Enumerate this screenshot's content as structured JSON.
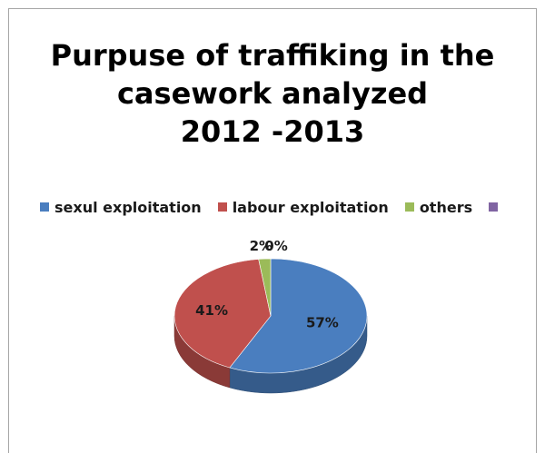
{
  "chart_data": {
    "type": "pie",
    "title_lines": [
      "Purpuse of traffiking in the",
      "casework analyzed",
      "2012 -2013"
    ],
    "categories": [
      "sexul exploitation",
      "labour exploitation",
      "others",
      ""
    ],
    "values": [
      57,
      41,
      2,
      0
    ],
    "data_labels": [
      "57%",
      "41%",
      "2%",
      "0%"
    ],
    "colors": [
      "#4a7ebf",
      "#c0504d",
      "#9bbb59",
      "#8064a2"
    ],
    "legend_position": "top",
    "style": "3d"
  }
}
